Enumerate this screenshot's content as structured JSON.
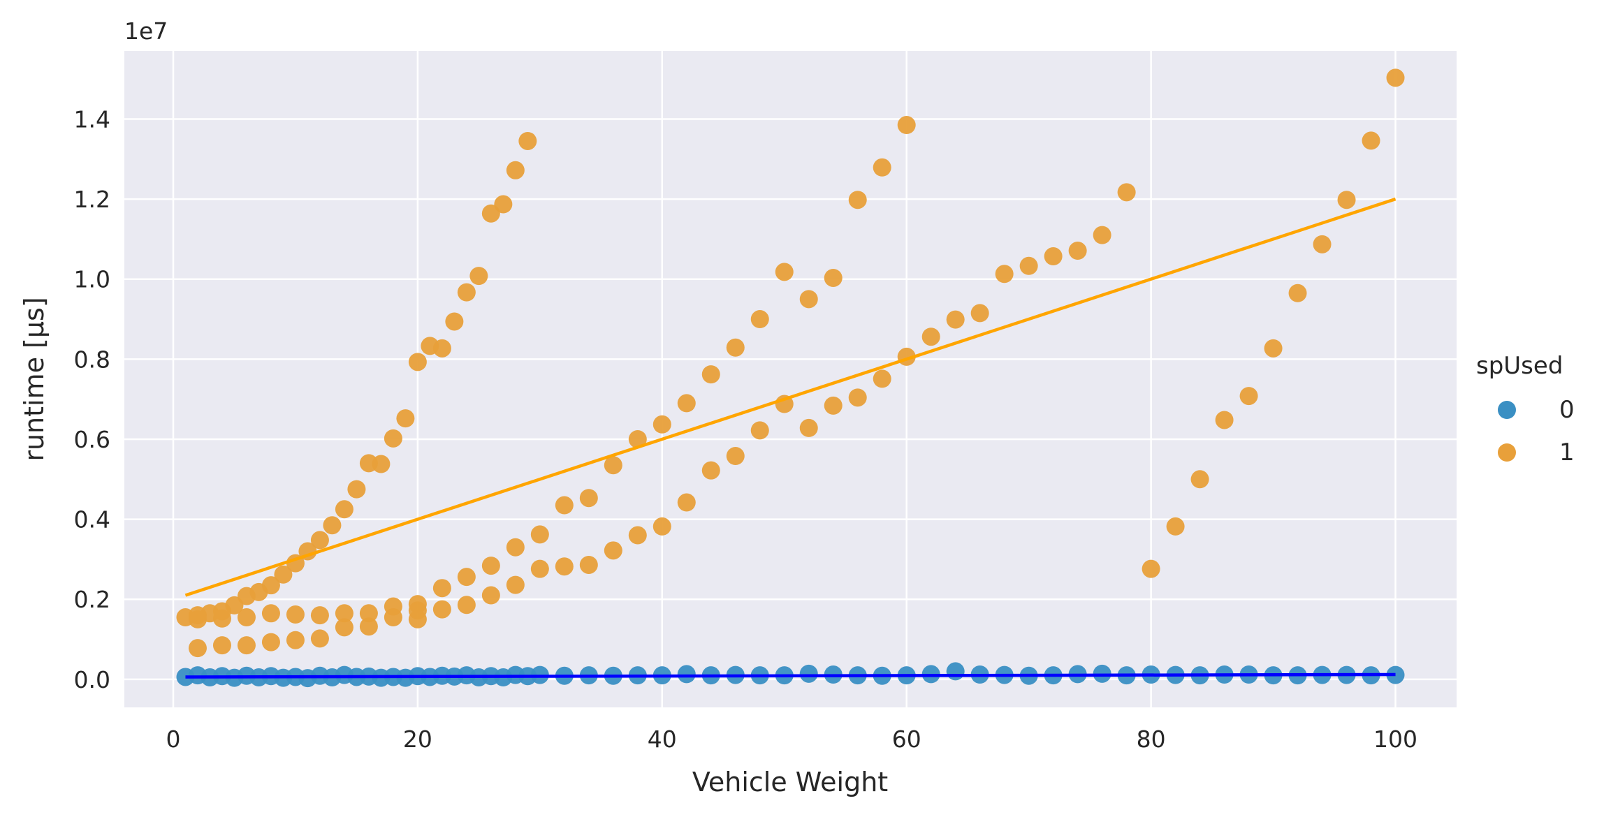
{
  "chart_data": {
    "type": "scatter",
    "xlabel": "Vehicle Weight",
    "ylabel": "runtime [µs]",
    "offset_text": "1e7",
    "xlim": [
      -4,
      105
    ],
    "ylim": [
      -700000,
      15700000
    ],
    "x_ticks": [
      0,
      20,
      40,
      60,
      80,
      100
    ],
    "x_tick_labels": [
      "0",
      "20",
      "40",
      "60",
      "80",
      "100"
    ],
    "y_ticks": [
      0,
      2000000,
      4000000,
      6000000,
      8000000,
      10000000,
      12000000,
      14000000
    ],
    "y_tick_labels": [
      "0.0",
      "0.2",
      "0.4",
      "0.6",
      "0.8",
      "1.0",
      "1.2",
      "1.4"
    ],
    "grid": true,
    "legend": {
      "title": "spUsed",
      "placement": "right"
    },
    "series": [
      {
        "name": "0",
        "color": "#3a8fc3",
        "line_color": "#0000ff",
        "points": [
          [
            1,
            60000
          ],
          [
            2,
            100000
          ],
          [
            3,
            50000
          ],
          [
            4,
            80000
          ],
          [
            5,
            40000
          ],
          [
            6,
            90000
          ],
          [
            7,
            50000
          ],
          [
            8,
            80000
          ],
          [
            9,
            40000
          ],
          [
            10,
            60000
          ],
          [
            11,
            30000
          ],
          [
            12,
            90000
          ],
          [
            13,
            50000
          ],
          [
            14,
            110000
          ],
          [
            15,
            60000
          ],
          [
            16,
            70000
          ],
          [
            17,
            40000
          ],
          [
            18,
            60000
          ],
          [
            19,
            40000
          ],
          [
            20,
            80000
          ],
          [
            21,
            60000
          ],
          [
            22,
            90000
          ],
          [
            23,
            70000
          ],
          [
            24,
            100000
          ],
          [
            25,
            50000
          ],
          [
            26,
            80000
          ],
          [
            27,
            50000
          ],
          [
            28,
            110000
          ],
          [
            29,
            80000
          ],
          [
            30,
            110000
          ],
          [
            32,
            90000
          ],
          [
            34,
            100000
          ],
          [
            36,
            90000
          ],
          [
            38,
            100000
          ],
          [
            40,
            100000
          ],
          [
            42,
            130000
          ],
          [
            44,
            100000
          ],
          [
            46,
            110000
          ],
          [
            48,
            100000
          ],
          [
            50,
            100000
          ],
          [
            52,
            140000
          ],
          [
            54,
            120000
          ],
          [
            56,
            100000
          ],
          [
            58,
            90000
          ],
          [
            60,
            100000
          ],
          [
            62,
            130000
          ],
          [
            64,
            200000
          ],
          [
            66,
            120000
          ],
          [
            68,
            110000
          ],
          [
            70,
            90000
          ],
          [
            72,
            100000
          ],
          [
            74,
            130000
          ],
          [
            76,
            140000
          ],
          [
            78,
            100000
          ],
          [
            80,
            120000
          ],
          [
            82,
            110000
          ],
          [
            84,
            100000
          ],
          [
            86,
            120000
          ],
          [
            88,
            120000
          ],
          [
            90,
            100000
          ],
          [
            92,
            100000
          ],
          [
            94,
            110000
          ],
          [
            96,
            110000
          ],
          [
            98,
            100000
          ],
          [
            100,
            110000
          ]
        ],
        "regression": [
          [
            1,
            60000
          ],
          [
            100,
            120000
          ]
        ]
      },
      {
        "name": "1",
        "color": "#e8a03a",
        "line_color": "#ffa500",
        "points": [
          [
            1,
            1550000
          ],
          [
            2,
            1600000
          ],
          [
            2,
            1500000
          ],
          [
            2,
            780000
          ],
          [
            3,
            1650000
          ],
          [
            4,
            1700000
          ],
          [
            4,
            1520000
          ],
          [
            4,
            850000
          ],
          [
            5,
            1850000
          ],
          [
            6,
            2080000
          ],
          [
            6,
            1550000
          ],
          [
            6,
            850000
          ],
          [
            7,
            2180000
          ],
          [
            8,
            2350000
          ],
          [
            8,
            1650000
          ],
          [
            8,
            930000
          ],
          [
            9,
            2620000
          ],
          [
            10,
            2900000
          ],
          [
            10,
            1620000
          ],
          [
            10,
            980000
          ],
          [
            11,
            3200000
          ],
          [
            12,
            3480000
          ],
          [
            12,
            1600000
          ],
          [
            12,
            1020000
          ],
          [
            13,
            3850000
          ],
          [
            14,
            4250000
          ],
          [
            14,
            1650000
          ],
          [
            14,
            1300000
          ],
          [
            15,
            4750000
          ],
          [
            16,
            5400000
          ],
          [
            16,
            1650000
          ],
          [
            16,
            1320000
          ],
          [
            17,
            5380000
          ],
          [
            18,
            6020000
          ],
          [
            18,
            1820000
          ],
          [
            18,
            1550000
          ],
          [
            19,
            6520000
          ],
          [
            20,
            7930000
          ],
          [
            20,
            1880000
          ],
          [
            20,
            1500000
          ],
          [
            20,
            1720000
          ],
          [
            21,
            8330000
          ],
          [
            22,
            8270000
          ],
          [
            22,
            2280000
          ],
          [
            22,
            1750000
          ],
          [
            23,
            8940000
          ],
          [
            24,
            9670000
          ],
          [
            24,
            2560000
          ],
          [
            24,
            1860000
          ],
          [
            25,
            10080000
          ],
          [
            26,
            11640000
          ],
          [
            26,
            2840000
          ],
          [
            26,
            2100000
          ],
          [
            27,
            11870000
          ],
          [
            28,
            12720000
          ],
          [
            28,
            3300000
          ],
          [
            28,
            2360000
          ],
          [
            29,
            13450000
          ],
          [
            30,
            3620000
          ],
          [
            30,
            2760000
          ],
          [
            32,
            4350000
          ],
          [
            32,
            2820000
          ],
          [
            34,
            4530000
          ],
          [
            34,
            2860000
          ],
          [
            36,
            5350000
          ],
          [
            36,
            3220000
          ],
          [
            38,
            6000000
          ],
          [
            38,
            3600000
          ],
          [
            40,
            6370000
          ],
          [
            40,
            3820000
          ],
          [
            42,
            6900000
          ],
          [
            42,
            4420000
          ],
          [
            44,
            7620000
          ],
          [
            44,
            5220000
          ],
          [
            46,
            8290000
          ],
          [
            46,
            5580000
          ],
          [
            48,
            9000000
          ],
          [
            48,
            6220000
          ],
          [
            50,
            10180000
          ],
          [
            50,
            6880000
          ],
          [
            52,
            9500000
          ],
          [
            52,
            6280000
          ],
          [
            54,
            10030000
          ],
          [
            54,
            6840000
          ],
          [
            56,
            11980000
          ],
          [
            56,
            7040000
          ],
          [
            58,
            12790000
          ],
          [
            58,
            7510000
          ],
          [
            60,
            13850000
          ],
          [
            60,
            8060000
          ],
          [
            62,
            8560000
          ],
          [
            64,
            8990000
          ],
          [
            66,
            9150000
          ],
          [
            68,
            10130000
          ],
          [
            70,
            10330000
          ],
          [
            72,
            10570000
          ],
          [
            74,
            10710000
          ],
          [
            76,
            11100000
          ],
          [
            78,
            12170000
          ],
          [
            80,
            2760000
          ],
          [
            82,
            3820000
          ],
          [
            84,
            5000000
          ],
          [
            86,
            6480000
          ],
          [
            88,
            7080000
          ],
          [
            90,
            8270000
          ],
          [
            92,
            9650000
          ],
          [
            94,
            10870000
          ],
          [
            96,
            11980000
          ],
          [
            98,
            13460000
          ],
          [
            100,
            15030000
          ]
        ],
        "regression": [
          [
            1,
            2100000
          ],
          [
            100,
            12000000
          ]
        ]
      }
    ]
  }
}
